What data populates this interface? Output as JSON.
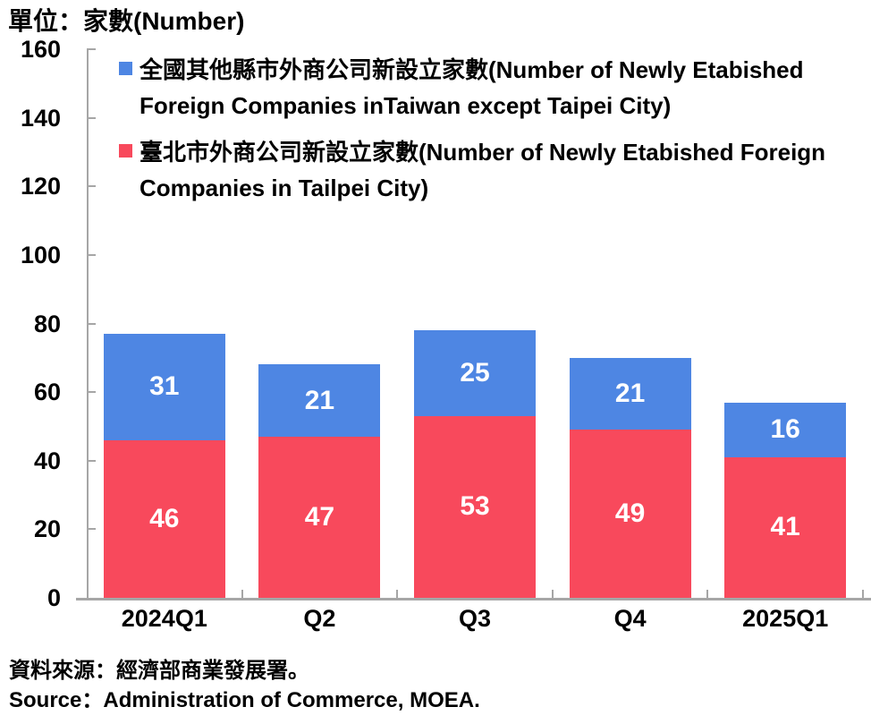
{
  "title": "單位：家數(Number)",
  "chart_data": {
    "type": "bar",
    "stacked": true,
    "title": "單位：家數(Number)",
    "categories": [
      "2024Q1",
      "Q2",
      "Q3",
      "Q4",
      "2025Q1"
    ],
    "series": [
      {
        "key": "taipei-city",
        "name": "臺北市外商公司新設立家數(Number of Newly Etabished Foreign Companies in Tailpei City)",
        "name_lines": [
          "臺北市外商公司新設立家數(Number of Newly Etabished Foreign",
          "Companies in Tailpei City)"
        ],
        "color": "#F8495C",
        "values": [
          46,
          47,
          53,
          49,
          41
        ]
      },
      {
        "key": "taiwan-except-taipei",
        "name": "全國其他縣市外商公司新設立家數(Number of Newly Etabished Foreign Companies inTaiwan except Taipei City)",
        "name_lines": [
          "全國其他縣市外商公司新設立家數(Number of Newly Etabished",
          "Foreign Companies inTaiwan except Taipei City)"
        ],
        "color": "#4E86E3",
        "values": [
          31,
          21,
          25,
          21,
          16
        ]
      }
    ],
    "legend_order": [
      1,
      0
    ],
    "ylim": [
      0,
      160
    ],
    "yticks": [
      0,
      20,
      40,
      60,
      80,
      100,
      120,
      140,
      160
    ],
    "grid": false,
    "legend_position": "top-left-inside",
    "axis_color": "#A6A6A6",
    "value_label_color": "#FFFFFF",
    "xlabel": "",
    "ylabel": "家數(Number)"
  },
  "source": {
    "line1": "資料來源：經濟部商業發展署。",
    "line2": "Source：Administration of Commerce, MOEA."
  }
}
